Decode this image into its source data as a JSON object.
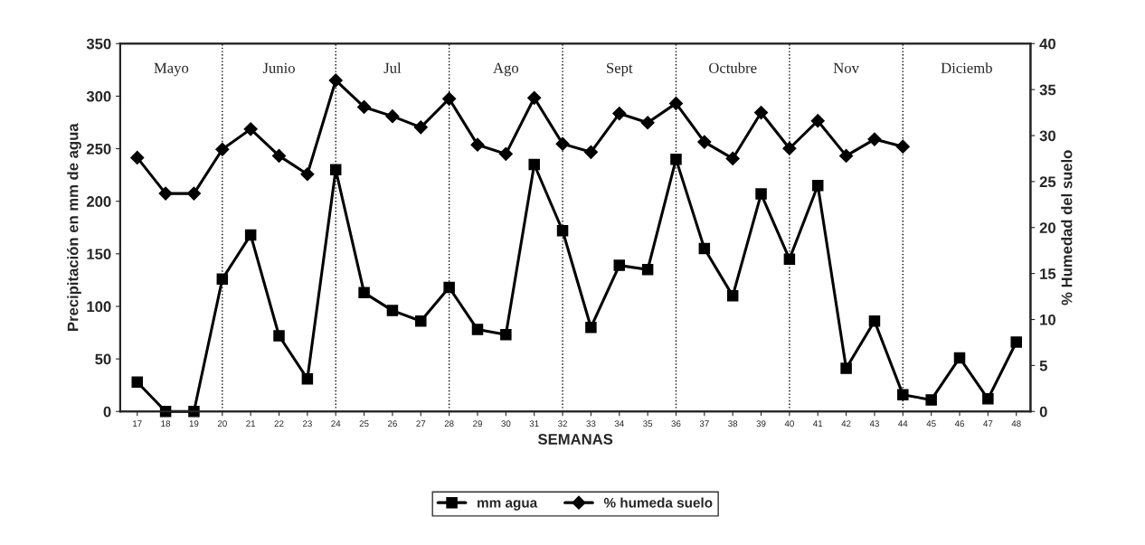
{
  "chart_data": {
    "type": "line",
    "xlabel": "SEMANAS",
    "ylabel": "Precipitación en mm de agua",
    "y2label": "% Humedad del suelo",
    "categories": [
      "17",
      "18",
      "19",
      "20",
      "21",
      "22",
      "23",
      "24",
      "25",
      "26",
      "27",
      "28",
      "29",
      "30",
      "31",
      "32",
      "33",
      "34",
      "35",
      "36",
      "37",
      "38",
      "39",
      "40",
      "41",
      "42",
      "43",
      "44",
      "45",
      "46",
      "47",
      "48"
    ],
    "series": [
      {
        "name": "mm agua",
        "color": "#000000",
        "marker": "square",
        "values": [
          28,
          0,
          0,
          126,
          168,
          72,
          31,
          230,
          113,
          96,
          86,
          118,
          78,
          73,
          235,
          172,
          80,
          139,
          135,
          240,
          155,
          110,
          207,
          145,
          215,
          41,
          86,
          16,
          11,
          51,
          12,
          66
        ]
      },
      {
        "name": "% humeda suelo",
        "color": "#000000",
        "marker": "diamond",
        "axis": "y2",
        "values": [
          27.6,
          23.7,
          23.7,
          28.5,
          30.7,
          27.8,
          25.8,
          36.0,
          33.1,
          32.1,
          30.9,
          34.0,
          29.0,
          28.0,
          34.1,
          29.1,
          28.2,
          32.4,
          31.4,
          33.5,
          29.3,
          27.5,
          32.5,
          28.6,
          31.6,
          27.8,
          29.6,
          28.8,
          null,
          null,
          null,
          null
        ]
      }
    ],
    "ylim": [
      0,
      350
    ],
    "yticks": [
      0,
      50,
      100,
      150,
      200,
      250,
      300,
      350
    ],
    "y2lim": [
      0,
      40
    ],
    "y2ticks": [
      0,
      5,
      10,
      15,
      20,
      25,
      30,
      35,
      40
    ],
    "ref_lines": [
      {
        "axis": "x",
        "value": "20",
        "line_style": "dotted"
      },
      {
        "axis": "x",
        "value": "24",
        "line_style": "dotted"
      },
      {
        "axis": "x",
        "value": "28",
        "line_style": "dotted"
      },
      {
        "axis": "x",
        "value": "32",
        "line_style": "dotted"
      },
      {
        "axis": "x",
        "value": "36",
        "line_style": "dotted"
      },
      {
        "axis": "x",
        "value": "40",
        "line_style": "dotted"
      },
      {
        "axis": "x",
        "value": "44",
        "line_style": "dotted"
      }
    ],
    "annotations": [
      "Mayo",
      "Junio",
      "Jul",
      "Ago",
      "Sept",
      "Octubre",
      "Nov",
      "Diciemb"
    ],
    "grid": false,
    "legend": "bottom",
    "line_style": "solid"
  }
}
